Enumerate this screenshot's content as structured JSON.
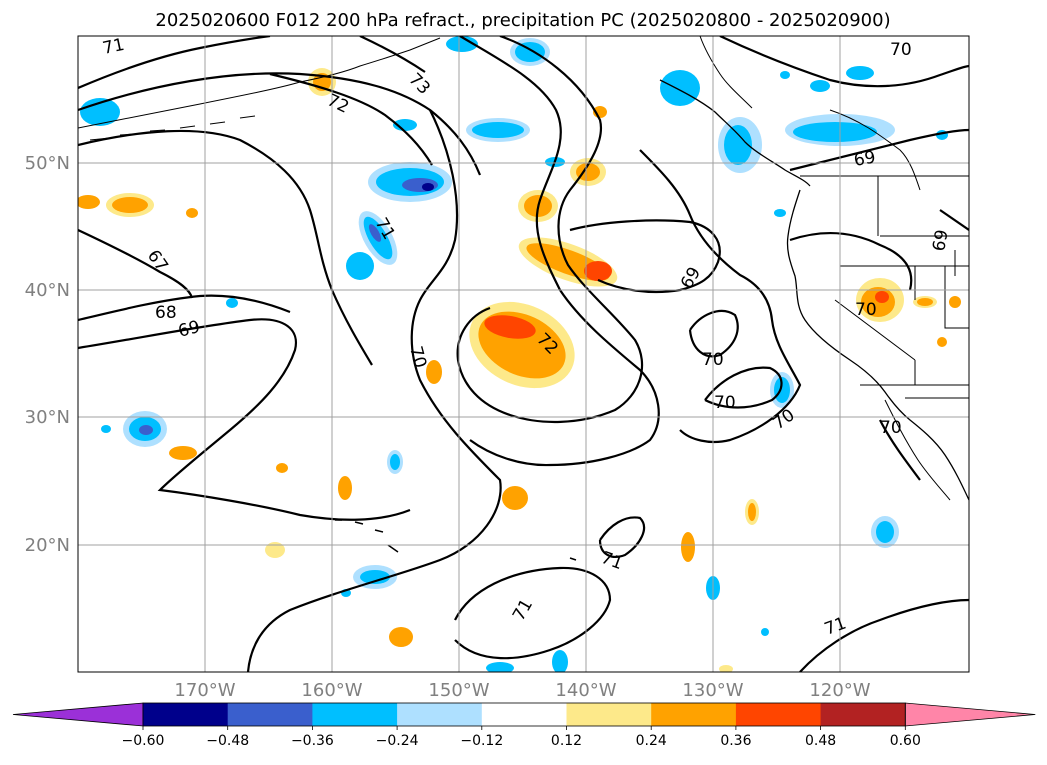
{
  "title": "2025020600 F012 200 hPa refract., precipitation PC (2025020800 - 2025020900)",
  "lat_labels": [
    "50°N",
    "40°N",
    "30°N",
    "20°N"
  ],
  "lon_labels": [
    "170°W",
    "160°W",
    "150°W",
    "140°W",
    "130°W",
    "120°W"
  ],
  "colorbar": {
    "ticks": [
      "−0.60",
      "−0.48",
      "−0.36",
      "−0.24",
      "−0.12",
      "0.12",
      "0.24",
      "0.36",
      "0.48",
      "0.60"
    ],
    "colors": [
      "#9b30d8",
      "#00008b",
      "#3a5fcd",
      "#00bfff",
      "#aee0ff",
      "#ffffff",
      "#fde98a",
      "#ffa200",
      "#ff4500",
      "#b22222",
      "#ff85a8"
    ]
  },
  "contour_labels": [
    "71",
    "70",
    "73",
    "72",
    "69",
    "67",
    "68",
    "71",
    "70",
    "72",
    "69",
    "69",
    "70",
    "70",
    "70",
    "71",
    "71",
    "71",
    "69",
    "70"
  ],
  "shading_colors": {
    "light_blue": "#aee0ff",
    "blue": "#00bfff",
    "medium_blue": "#3a5fcd",
    "navy": "#00008b",
    "light_yellow": "#fde98a",
    "orange": "#ffa200",
    "red_orange": "#ff4500"
  }
}
